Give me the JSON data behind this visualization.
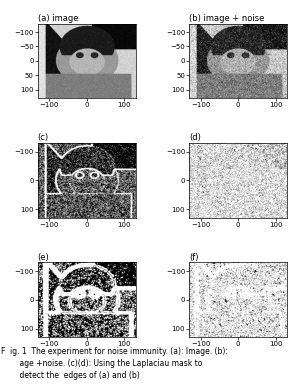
{
  "subplot_labels": [
    "(a) image",
    "(b) image + noise",
    "(c)",
    "(d)",
    "(e)",
    "(f)"
  ],
  "xticks": [
    -100,
    0,
    100
  ],
  "yticks_ab": [
    -100,
    -50,
    0,
    50,
    100
  ],
  "yticks_cdef": [
    -100,
    0,
    100
  ],
  "bg_color": "#ffffff",
  "caption": "ig. 1  The experiment for noise immunity. (a): Image. (b):\n    age +noise. (c)(d): Using the Laplaciau mask to\n    detect the  edges of (a) and (b)",
  "seed": 2023,
  "noise_seed": 77,
  "img_size": 256
}
